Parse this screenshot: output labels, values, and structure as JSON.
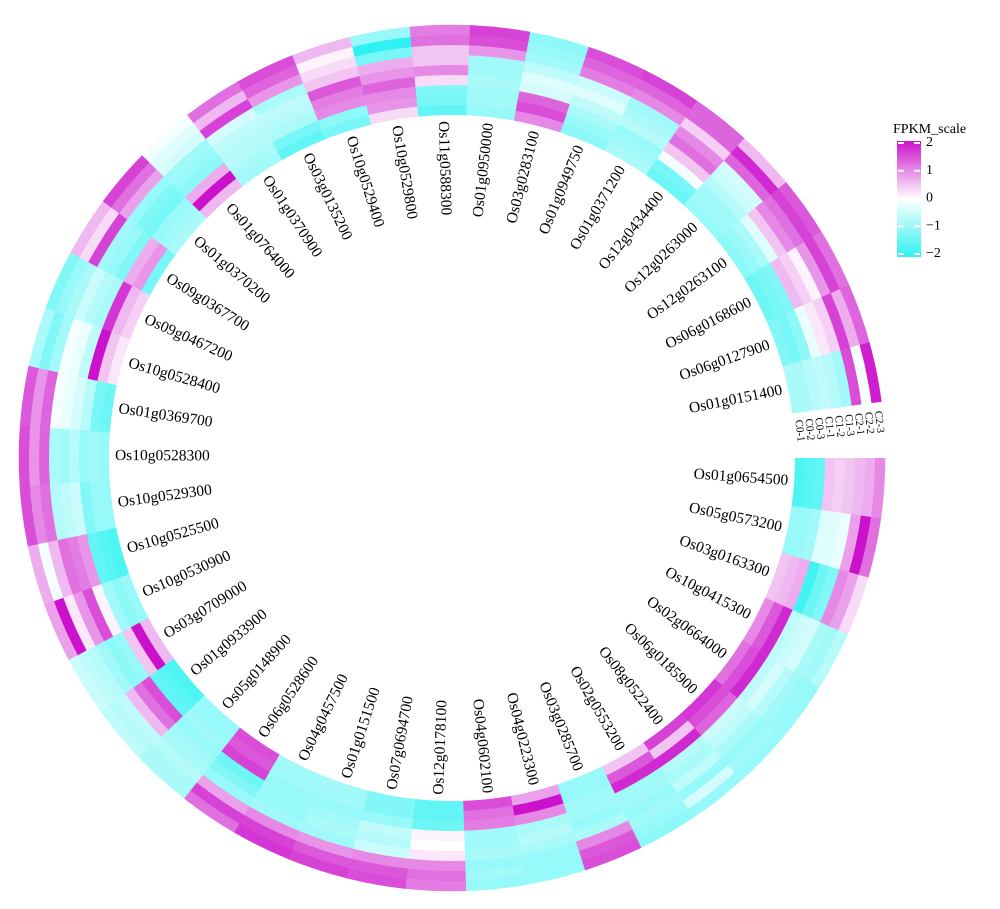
{
  "chart_data": {
    "type": "heatmap",
    "layout": "circular",
    "genes": [
      "Os01g0654500",
      "Os05g0573200",
      "Os03g0163300",
      "Os10g0415300",
      "Os02g0664000",
      "Os06g0185900",
      "Os08g0522400",
      "Os02g0553200",
      "Os03g0285700",
      "Os04g0223300",
      "Os04g0602100",
      "Os12g0178100",
      "Os07g0694700",
      "Os01g0151500",
      "Os04g0457500",
      "Os06g0528600",
      "Os05g0148900",
      "Os01g0933900",
      "Os03g0709000",
      "Os10g0530900",
      "Os10g0525500",
      "Os10g0529300",
      "Os10g0528300",
      "Os01g0369700",
      "Os10g0528400",
      "Os09g0467200",
      "Os09g0367700",
      "Os01g0370200",
      "Os01g0764000",
      "Os01g0370900",
      "Os03g0135200",
      "Os10g0529400",
      "Os10g0529800",
      "Os11g0588300",
      "Os01g0950000",
      "Os03g0283100",
      "Os01g0949750",
      "Os01g0371200",
      "Os12g0434400",
      "Os12g0263000",
      "Os12g0263100",
      "Os06g0168600",
      "Os06g0127900",
      "Os01g0151400"
    ],
    "samples": [
      "C0-1",
      "C0-2",
      "C0-3",
      "C1-1",
      "C1-2",
      "C1-3",
      "C2-1",
      "C2-2",
      "C2-3"
    ],
    "values": [
      [
        -1.7,
        -1.6,
        -1.5,
        0.5,
        0.4,
        0.5,
        0.6,
        0.7,
        1.0
      ],
      [
        -1.0,
        -1.0,
        -0.9,
        -0.3,
        -0.3,
        -0.2,
        0.8,
        2.0,
        1.2
      ],
      [
        0.5,
        0.6,
        0.7,
        -1.8,
        -1.4,
        -1.2,
        1.0,
        0.8,
        0.3
      ],
      [
        1.0,
        1.4,
        1.8,
        -0.6,
        -0.5,
        -0.4,
        -0.8,
        -0.9,
        -0.7
      ],
      [
        1.2,
        1.5,
        1.8,
        -0.6,
        -0.4,
        -0.7,
        -0.9,
        -1.0,
        -1.0
      ],
      [
        1.7,
        1.5,
        1.3,
        -0.5,
        -0.6,
        -0.8,
        -1.0,
        -0.9,
        -1.0
      ],
      [
        1.6,
        0.5,
        1.8,
        -0.7,
        -0.8,
        -0.6,
        -1.0,
        -0.4,
        -1.0
      ],
      [
        0.5,
        1.4,
        1.8,
        -0.9,
        -0.9,
        -1.0,
        -0.9,
        -1.0,
        -1.1
      ],
      [
        -1.0,
        -1.0,
        -0.9,
        -0.9,
        -1.0,
        -0.8,
        1.0,
        1.4,
        1.5
      ],
      [
        0.8,
        2.0,
        1.0,
        -0.8,
        -0.7,
        -0.8,
        -1.0,
        -1.0,
        -1.0
      ],
      [
        1.5,
        1.2,
        1.1,
        -0.9,
        -0.9,
        -0.8,
        -1.0,
        -0.9,
        -1.0
      ],
      [
        -1.5,
        -1.5,
        -1.4,
        0.1,
        0.0,
        0.2,
        1.0,
        1.2,
        1.1
      ],
      [
        -1.2,
        -1.2,
        -1.0,
        -0.6,
        -0.7,
        -0.5,
        1.0,
        1.4,
        1.5
      ],
      [
        -0.9,
        -0.9,
        -1.0,
        -0.9,
        -0.8,
        -0.9,
        0.9,
        1.4,
        1.6
      ],
      [
        -0.9,
        -0.9,
        -1.0,
        -1.0,
        -1.0,
        -0.9,
        1.0,
        1.6,
        1.7
      ],
      [
        1.5,
        1.4,
        1.6,
        -1.4,
        -1.2,
        -1.0,
        0.8,
        1.6,
        1.2
      ],
      [
        -1.0,
        -1.0,
        -0.9,
        -1.0,
        -0.9,
        -0.8,
        -0.7,
        -0.8,
        -0.8
      ],
      [
        -1.7,
        -1.6,
        -1.5,
        1.5,
        1.2,
        0.6,
        -0.6,
        -0.7,
        -0.6
      ],
      [
        0.6,
        2.0,
        0.5,
        -1.0,
        -1.1,
        -0.9,
        -0.7,
        -0.6,
        -0.5
      ],
      [
        -1.0,
        -1.1,
        -0.9,
        0.1,
        1.5,
        0.9,
        0.2,
        2.0,
        0.8
      ],
      [
        -1.7,
        -1.6,
        -1.5,
        0.9,
        1.1,
        1.2,
        0.6,
        -0.1,
        0.7
      ],
      [
        -1.0,
        -1.0,
        -1.2,
        -0.5,
        -0.6,
        -0.7,
        1.2,
        1.0,
        1.5
      ],
      [
        -1.0,
        -0.9,
        -1.0,
        -0.7,
        -0.9,
        -0.8,
        1.3,
        0.9,
        1.5
      ],
      [
        -1.4,
        -1.3,
        -0.7,
        -0.4,
        -0.2,
        -0.1,
        1.3,
        0.9,
        1.4
      ],
      [
        0.2,
        0.5,
        2.0,
        -0.6,
        -0.2,
        -0.1,
        -0.9,
        -1.2,
        -0.8
      ],
      [
        0.4,
        0.6,
        1.7,
        -0.8,
        -0.7,
        -0.5,
        -0.8,
        -1.0,
        -1.2
      ],
      [
        -1.3,
        0.9,
        0.7,
        -1.2,
        -1.0,
        -0.9,
        1.6,
        0.3,
        0.6
      ],
      [
        -0.8,
        -0.9,
        -1.0,
        -1.3,
        -1.2,
        -1.0,
        0.8,
        1.2,
        1.6
      ],
      [
        0.6,
        2.0,
        0.7,
        -1.1,
        -1.0,
        -0.9,
        -0.4,
        -0.3,
        -0.1
      ],
      [
        -0.9,
        -0.8,
        -0.7,
        -0.7,
        -0.6,
        -0.4,
        1.6,
        0.6,
        1.2
      ],
      [
        -1.5,
        -1.3,
        -0.8,
        -0.7,
        -0.6,
        -0.8,
        0.9,
        1.3,
        1.5
      ],
      [
        -1.3,
        -1.1,
        1.0,
        1.1,
        1.4,
        0.5,
        0.3,
        0.1,
        0.6
      ],
      [
        0.3,
        0.9,
        1.0,
        1.3,
        0.9,
        0.7,
        -1.3,
        -2.0,
        -1.0
      ],
      [
        -1.5,
        -1.3,
        -1.2,
        0.3,
        1.0,
        0.5,
        0.5,
        1.2,
        1.1
      ],
      [
        -1.0,
        -0.9,
        -0.9,
        -0.8,
        -0.9,
        -0.9,
        0.9,
        1.5,
        1.6
      ],
      [
        1.0,
        1.5,
        1.3,
        -0.4,
        -0.3,
        -0.6,
        -0.9,
        -1.0,
        -1.1
      ],
      [
        -1.1,
        -1.0,
        -0.8,
        -0.6,
        -0.3,
        -0.5,
        1.1,
        1.3,
        1.5
      ],
      [
        -0.8,
        -0.9,
        -1.0,
        -0.7,
        -0.8,
        -0.9,
        1.0,
        1.3,
        1.6
      ],
      [
        -1.4,
        -1.3,
        -0.1,
        0.5,
        1.2,
        1.0,
        0.4,
        1.3,
        1.3
      ],
      [
        -1.0,
        -0.9,
        -0.9,
        -0.7,
        -0.5,
        -0.4,
        1.3,
        1.8,
        0.6
      ],
      [
        -1.1,
        -1.0,
        -0.8,
        -0.3,
        0.5,
        1.0,
        1.2,
        1.6,
        1.4
      ],
      [
        -1.4,
        -1.3,
        -1.2,
        0.6,
        0.4,
        0.1,
        0.9,
        1.6,
        1.2
      ],
      [
        -1.2,
        -1.3,
        -1.1,
        -0.2,
        0.2,
        0.4,
        1.6,
        0.7,
        1.3
      ],
      [
        -0.8,
        -0.8,
        -0.7,
        -0.6,
        -0.7,
        -0.9,
        1.5,
        -0.1,
        1.9
      ]
    ],
    "value_range": [
      -2,
      2
    ],
    "colors": {
      "low": "#2ef2f2",
      "mid": "#ffffff",
      "high": "#cc11cc"
    },
    "legend": {
      "title": "FPKM_scale",
      "ticks": [
        "2",
        "1",
        "0",
        "−1",
        "−2"
      ],
      "tick_values": [
        2,
        1,
        0,
        -1,
        -2
      ],
      "placement": "top-right"
    }
  }
}
